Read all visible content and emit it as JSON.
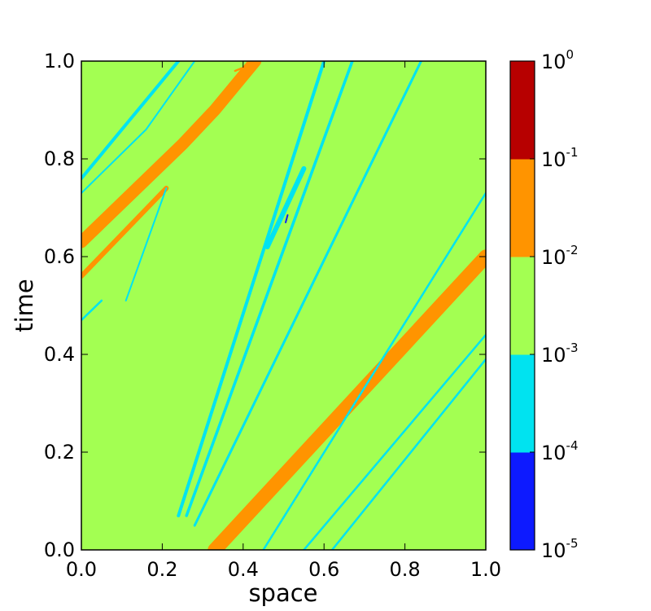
{
  "chart_data": {
    "type": "heatmap",
    "title": "",
    "xlabel": "space",
    "ylabel": "time",
    "xlim": [
      0.0,
      1.0
    ],
    "ylim": [
      0.0,
      1.0
    ],
    "x_ticks": [
      "0.0",
      "0.2",
      "0.4",
      "0.6",
      "0.8",
      "1.0"
    ],
    "y_ticks": [
      "0.0",
      "0.2",
      "0.4",
      "0.6",
      "0.8",
      "1.0"
    ],
    "grid": false,
    "background_level": "1e-3 to 1e-2",
    "colorbar": {
      "scale": "log",
      "levels": [
        {
          "from": "1e-5",
          "to": "1e-4",
          "color": "#0d1aff"
        },
        {
          "from": "1e-4",
          "to": "1e-3",
          "color": "#00e3f0"
        },
        {
          "from": "1e-3",
          "to": "1e-2",
          "color": "#a3ff52"
        },
        {
          "from": "1e-2",
          "to": "1e-1",
          "color": "#ff9400"
        },
        {
          "from": "1e-1",
          "to": "1e0",
          "color": "#b70000"
        }
      ],
      "tick_base": "10",
      "tick_exponents": [
        "-5",
        "-4",
        "-3",
        "-2",
        "-1",
        "0"
      ]
    },
    "bands": [
      {
        "level": "1e-2 to 1e-1",
        "path": [
          [
            0.33,
            0.0
          ],
          [
            1.0,
            0.6
          ]
        ],
        "width": 0.035
      },
      {
        "level": "1e-2 to 1e-1",
        "path": [
          [
            0.0,
            0.63
          ],
          [
            0.25,
            0.83
          ],
          [
            0.33,
            0.9
          ],
          [
            0.43,
            1.0
          ]
        ],
        "width": 0.03
      },
      {
        "level": "1e-2 to 1e-1",
        "path": [
          [
            0.0,
            0.56
          ],
          [
            0.21,
            0.74
          ]
        ],
        "width": 0.012
      },
      {
        "level": "1e-2 to 1e-1",
        "path": [
          [
            0.38,
            0.98
          ],
          [
            0.53,
            1.03
          ]
        ],
        "width": 0.005
      },
      {
        "level": "1e-4 to 1e-3",
        "path": [
          [
            0.0,
            0.76
          ],
          [
            0.24,
            1.0
          ]
        ],
        "width": 0.008
      },
      {
        "level": "1e-4 to 1e-3",
        "path": [
          [
            0.0,
            0.73
          ],
          [
            0.16,
            0.86
          ],
          [
            0.28,
            1.0
          ]
        ],
        "width": 0.004
      },
      {
        "level": "1e-4 to 1e-3",
        "path": [
          [
            0.24,
            0.07
          ],
          [
            0.6,
            1.0
          ]
        ],
        "width": 0.008
      },
      {
        "level": "1e-4 to 1e-3",
        "path": [
          [
            0.26,
            0.07
          ],
          [
            0.67,
            1.0
          ]
        ],
        "width": 0.007
      },
      {
        "level": "1e-4 to 1e-3",
        "path": [
          [
            0.28,
            0.05
          ],
          [
            0.84,
            1.0
          ]
        ],
        "width": 0.006
      },
      {
        "level": "1e-4 to 1e-3",
        "path": [
          [
            0.45,
            0.0
          ],
          [
            1.0,
            0.73
          ]
        ],
        "width": 0.005
      },
      {
        "level": "1e-4 to 1e-3",
        "path": [
          [
            0.55,
            0.0
          ],
          [
            1.0,
            0.44
          ]
        ],
        "width": 0.005
      },
      {
        "level": "1e-4 to 1e-3",
        "path": [
          [
            0.62,
            0.0
          ],
          [
            1.0,
            0.39
          ]
        ],
        "width": 0.005
      },
      {
        "level": "1e-4 to 1e-3",
        "path": [
          [
            0.46,
            0.62
          ],
          [
            0.55,
            0.78
          ]
        ],
        "width": 0.012
      },
      {
        "level": "1e-4 to 1e-3",
        "path": [
          [
            0.11,
            0.51
          ],
          [
            0.21,
            0.74
          ]
        ],
        "width": 0.004
      },
      {
        "level": "1e-4 to 1e-3",
        "path": [
          [
            0.0,
            0.47
          ],
          [
            0.05,
            0.51
          ]
        ],
        "width": 0.005
      },
      {
        "level": "1e-5 to 1e-4",
        "path": [
          [
            0.505,
            0.67
          ],
          [
            0.51,
            0.685
          ]
        ],
        "width": 0.004
      }
    ]
  }
}
